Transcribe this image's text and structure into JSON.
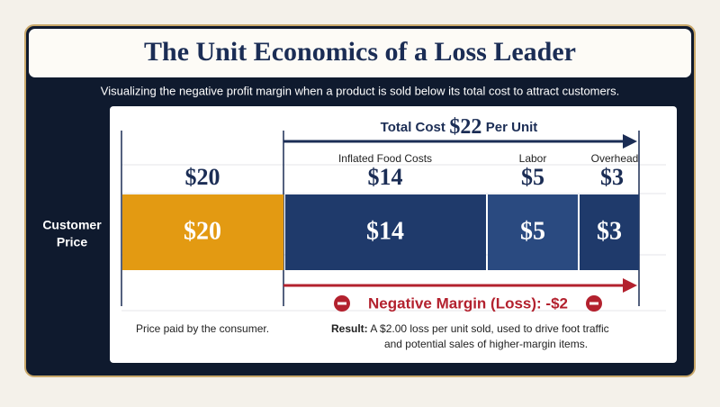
{
  "header": {
    "title": "The Unit Economics of a Loss Leader",
    "subtitle": "Visualizing the negative profit margin when a product is sold below its total cost to attract customers."
  },
  "total_cost": {
    "label": "Total Cost",
    "value": "$22",
    "unit": "Per Unit"
  },
  "customer_price": {
    "label_lines": [
      "Customer",
      "Price"
    ],
    "top_label": "$20",
    "bar_label": "$20"
  },
  "cost_components": [
    {
      "name": "Inflated Food Costs",
      "top_label": "$14",
      "bar_label": "$14"
    },
    {
      "name": "Labor",
      "top_label": "$5",
      "bar_label": "$5"
    },
    {
      "name": "Overhead",
      "top_label": "$3",
      "bar_label": "$3"
    }
  ],
  "margin": {
    "label": "Negative Margin (Loss): -$2"
  },
  "notes": {
    "price": "Price paid by the consumer.",
    "result_heading": "Result:",
    "result_lines": [
      "A $2.00 loss per unit sold, used to drive foot traffic",
      "and potential sales of higher-margin items."
    ]
  }
}
